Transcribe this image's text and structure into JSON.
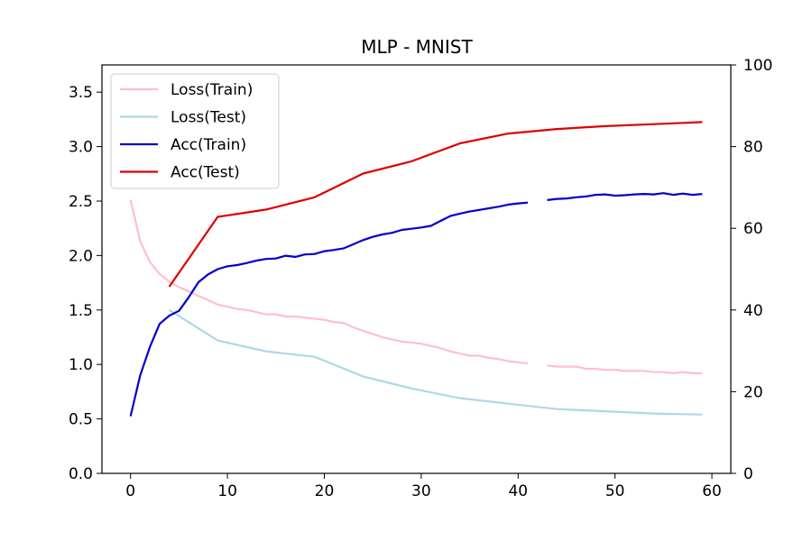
{
  "chart_data": {
    "type": "line",
    "title": "MLP - MNIST",
    "xlabel": "",
    "ylabel": "",
    "y2label": "",
    "grid": false,
    "legend_position": "top-left",
    "xlim": [
      -2.95,
      61.95
    ],
    "ylim": [
      0,
      3.75
    ],
    "y2lim": [
      0,
      100
    ],
    "xticks": [
      0,
      10,
      20,
      30,
      40,
      50,
      60
    ],
    "yticks": [
      0.0,
      0.5,
      1.0,
      1.5,
      2.0,
      2.5,
      3.0,
      3.5
    ],
    "y2ticks": [
      0,
      20,
      40,
      60,
      80,
      100
    ],
    "ytick_labels": [
      "0.0",
      "0.5",
      "1.0",
      "1.5",
      "2.0",
      "2.5",
      "3.0",
      "3.5"
    ],
    "series": [
      {
        "name": "Loss(Train)",
        "axis": "left",
        "color": "#ffc0cb",
        "x": [
          0,
          1,
          2,
          3,
          4,
          5,
          6,
          7,
          8,
          9,
          10,
          11,
          12,
          13,
          14,
          15,
          16,
          17,
          18,
          19,
          20,
          21,
          22,
          23,
          24,
          25,
          26,
          27,
          28,
          29,
          30,
          31,
          32,
          33,
          34,
          35,
          36,
          37,
          38,
          39,
          40,
          41,
          43,
          44,
          45,
          46,
          47,
          48,
          49,
          50,
          51,
          52,
          53,
          54,
          55,
          56,
          57,
          58,
          59
        ],
        "y": [
          2.51,
          2.13,
          1.94,
          1.83,
          1.76,
          1.71,
          1.67,
          1.63,
          1.59,
          1.55,
          1.53,
          1.51,
          1.5,
          1.48,
          1.46,
          1.46,
          1.44,
          1.44,
          1.43,
          1.42,
          1.41,
          1.39,
          1.38,
          1.34,
          1.31,
          1.28,
          1.25,
          1.23,
          1.21,
          1.2,
          1.19,
          1.17,
          1.15,
          1.12,
          1.1,
          1.08,
          1.08,
          1.06,
          1.05,
          1.03,
          1.02,
          1.01,
          0.99,
          0.98,
          0.98,
          0.98,
          0.96,
          0.96,
          0.95,
          0.95,
          0.94,
          0.94,
          0.94,
          0.93,
          0.93,
          0.92,
          0.93,
          0.92,
          0.92
        ]
      },
      {
        "name": "Loss(Test)",
        "axis": "left",
        "color": "#add8e6",
        "x": [
          4,
          9,
          14,
          19,
          24,
          29,
          34,
          39,
          44,
          49,
          54,
          59
        ],
        "y": [
          1.5,
          1.22,
          1.12,
          1.07,
          0.89,
          0.78,
          0.69,
          0.64,
          0.59,
          0.57,
          0.55,
          0.54
        ]
      },
      {
        "name": "Acc(Train)",
        "axis": "right",
        "color": "#0000cd",
        "x": [
          0,
          1,
          2,
          3,
          4,
          5,
          6,
          7,
          8,
          9,
          10,
          11,
          12,
          13,
          14,
          15,
          16,
          17,
          18,
          19,
          20,
          21,
          22,
          23,
          24,
          25,
          26,
          27,
          28,
          29,
          30,
          31,
          32,
          33,
          34,
          35,
          36,
          37,
          38,
          39,
          40,
          41,
          43,
          44,
          45,
          46,
          47,
          48,
          49,
          50,
          51,
          52,
          53,
          54,
          55,
          56,
          57,
          58,
          59
        ],
        "y": [
          14,
          24,
          31,
          36.6,
          38.6,
          39.8,
          43.1,
          46.8,
          48.7,
          50.0,
          50.7,
          51.0,
          51.5,
          52.1,
          52.5,
          52.6,
          53.3,
          53.0,
          53.6,
          53.7,
          54.4,
          54.7,
          55.1,
          56.1,
          57.1,
          57.9,
          58.5,
          58.9,
          59.6,
          59.9,
          60.2,
          60.6,
          61.8,
          63.0,
          63.6,
          64.1,
          64.5,
          64.9,
          65.3,
          65.8,
          66.1,
          66.3,
          66.9,
          67.2,
          67.3,
          67.6,
          67.8,
          68.2,
          68.3,
          68.0,
          68.1,
          68.3,
          68.4,
          68.3,
          68.6,
          68.2,
          68.5,
          68.2,
          68.4
        ]
      },
      {
        "name": "Acc(Test)",
        "axis": "right",
        "color": "#dd0000",
        "x": [
          4,
          9,
          14,
          19,
          24,
          29,
          34,
          39,
          44,
          49,
          54,
          59
        ],
        "y": [
          45.7,
          62.8,
          64.6,
          67.6,
          73.4,
          76.4,
          80.8,
          83.2,
          84.3,
          85.0,
          85.5,
          86.0
        ]
      }
    ]
  }
}
